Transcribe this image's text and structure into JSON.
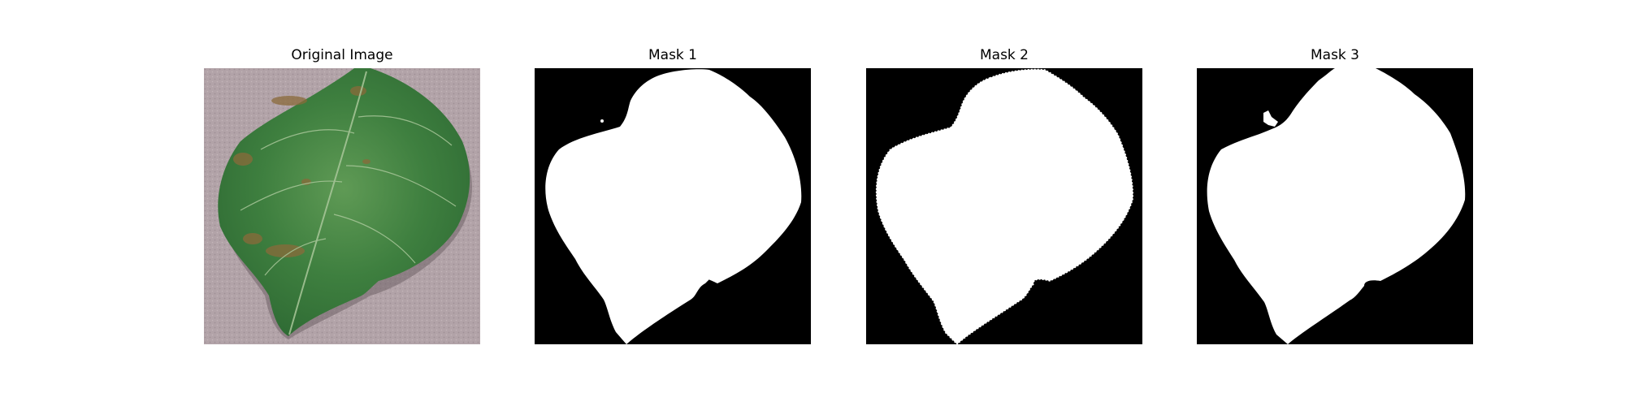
{
  "figure": {
    "panels": [
      {
        "title": "Original Image",
        "kind": "photo"
      },
      {
        "title": "Mask 1",
        "kind": "mask"
      },
      {
        "title": "Mask 2",
        "kind": "mask"
      },
      {
        "title": "Mask 3",
        "kind": "mask"
      }
    ]
  },
  "colors": {
    "background": "#b2a3a8",
    "leaf_dark": "#2f6b34",
    "leaf_mid": "#3e7f3f",
    "leaf_light": "#5f9a55",
    "lesion": "#8a6a3a",
    "mask_bg": "#000000",
    "mask_fg": "#ffffff"
  }
}
